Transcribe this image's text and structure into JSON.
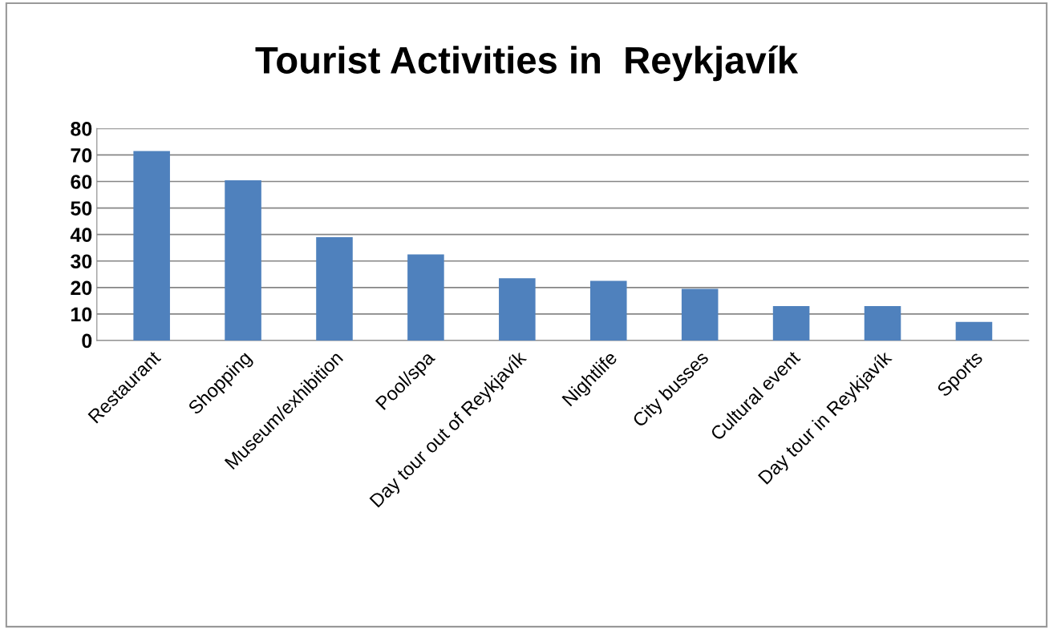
{
  "chart_data": {
    "type": "bar",
    "title": "Tourist Activities in  Reykjavík",
    "categories": [
      "Restaurant",
      "Shopping",
      "Museum/exhibition",
      "Pool/spa",
      "Day tour out of Reykjavík",
      "Nightlife",
      "City busses",
      "Cultural event",
      "Day tour in Reykjavík",
      "Sports"
    ],
    "values": [
      71.5,
      60.5,
      39,
      32.5,
      23.5,
      22.5,
      19.5,
      13,
      13,
      7
    ],
    "color": "#4f81bd",
    "ylim": [
      0,
      80
    ],
    "yticks": [
      0,
      10,
      20,
      30,
      40,
      50,
      60,
      70,
      80
    ],
    "grid": "y",
    "legend": false
  }
}
